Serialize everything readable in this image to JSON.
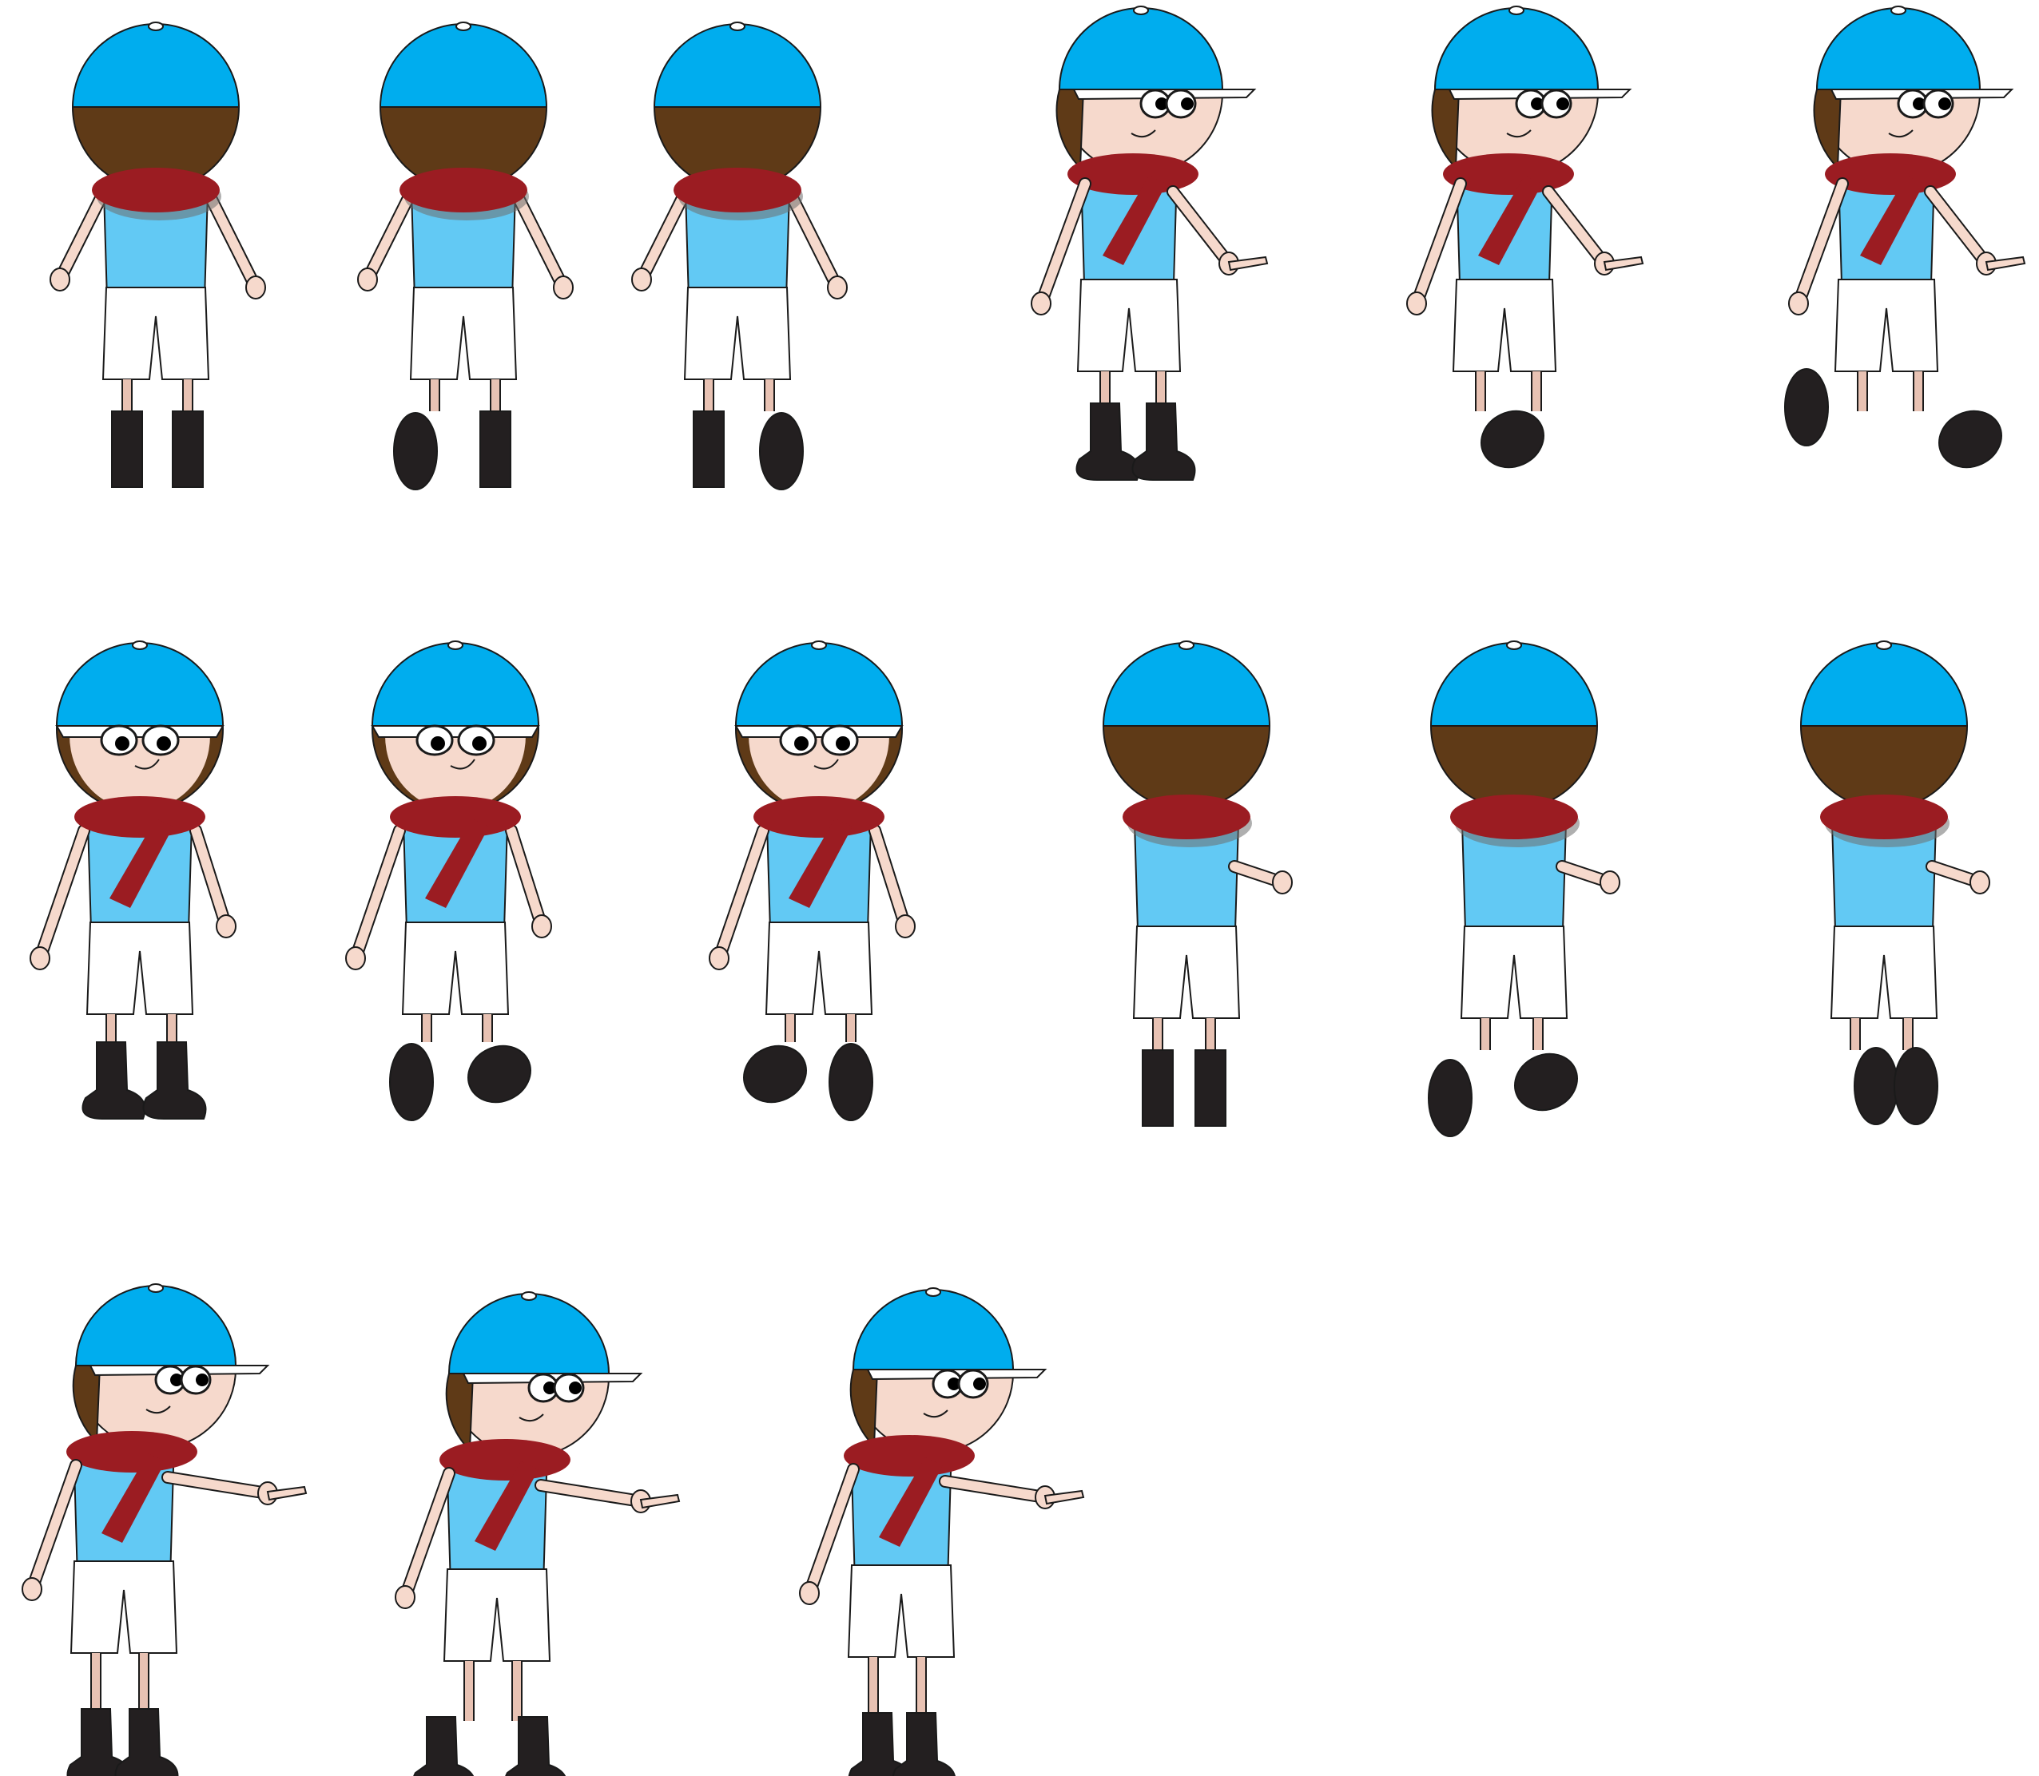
{
  "sprite_sheet": {
    "background": "#ffffff",
    "palette": {
      "cap": "#00adee",
      "cap_dark": "#0093cc",
      "cap_brim": "#ffffff",
      "hair": "#5f3a17",
      "skin": "#f6d9cc",
      "skin_shade": "#e8c2b3",
      "shirt": "#62c9f4",
      "scarf": "#9b1c22",
      "scarf_shadow": "#6e6e6e",
      "shorts": "#ffffff",
      "boots": "#231f20",
      "outline": "#1a1a1a"
    },
    "rows": [
      {
        "frames": [
          {
            "view": "back",
            "feet": "stand"
          },
          {
            "view": "back",
            "feet": "step-left"
          },
          {
            "view": "back",
            "feet": "step-right"
          },
          {
            "view": "side-right-pointing",
            "feet": "stand"
          },
          {
            "view": "side-right-pointing",
            "feet": "run-a"
          },
          {
            "view": "side-right-pointing",
            "feet": "run-b"
          }
        ]
      },
      {
        "frames": [
          {
            "view": "front",
            "feet": "stand"
          },
          {
            "view": "front",
            "feet": "step-left"
          },
          {
            "view": "front",
            "feet": "step-right"
          },
          {
            "view": "back-turned-right",
            "feet": "stand"
          },
          {
            "view": "back-turned-right",
            "feet": "walk-a"
          },
          {
            "view": "back-turned-right",
            "feet": "walk-b"
          }
        ]
      },
      {
        "frames": [
          {
            "view": "side-right-pointing-arm-out",
            "feet": "stand"
          },
          {
            "view": "side-right-pointing-arm-out",
            "feet": "walk-a"
          },
          {
            "view": "side-right-pointing-arm-out",
            "feet": "walk-b"
          }
        ]
      }
    ]
  }
}
